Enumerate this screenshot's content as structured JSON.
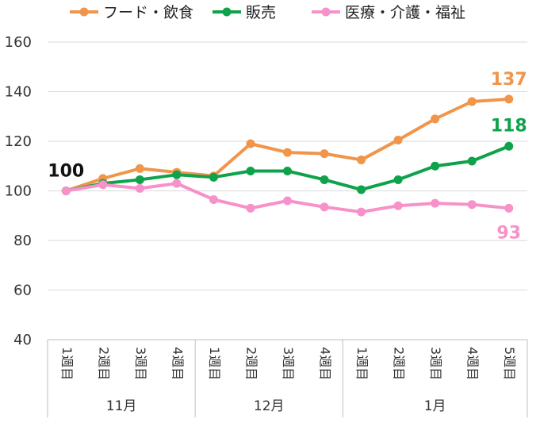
{
  "chart_data": {
    "type": "line",
    "title": "",
    "xlabel": "",
    "ylabel": "",
    "ylim": [
      40,
      160
    ],
    "yticks": [
      40,
      60,
      80,
      100,
      120,
      140,
      160
    ],
    "grid": true,
    "legend_position": "top",
    "categories": [
      "1週目",
      "2週目",
      "3週目",
      "4週目",
      "1週目",
      "2週目",
      "3週目",
      "4週目",
      "1週目",
      "2週目",
      "3週目",
      "4週目",
      "5週目"
    ],
    "groups": [
      {
        "label": "11月",
        "count": 4
      },
      {
        "label": "12月",
        "count": 4
      },
      {
        "label": "1月",
        "count": 5
      }
    ],
    "series": [
      {
        "name": "フード・飲食",
        "color": "#F0954A",
        "values": [
          100,
          105,
          109,
          107.5,
          106,
          119,
          115.5,
          115,
          112.5,
          120.5,
          129,
          136,
          137
        ]
      },
      {
        "name": "販売",
        "color": "#0EA34A",
        "values": [
          100,
          103,
          104.5,
          106.5,
          105.5,
          108,
          108,
          104.5,
          100.5,
          104.5,
          110,
          112,
          118
        ]
      },
      {
        "name": "医療・介護・福祉",
        "color": "#F791C9",
        "values": [
          100,
          102.5,
          101,
          103,
          96.5,
          93,
          96,
          93.5,
          91.5,
          94,
          95,
          94.5,
          93
        ]
      }
    ],
    "annotations": [
      {
        "text": "100",
        "color": "#111111"
      },
      {
        "text": "137",
        "color": "#F0954A"
      },
      {
        "text": "118",
        "color": "#0EA34A"
      },
      {
        "text": "93",
        "color": "#F791C9"
      }
    ]
  }
}
